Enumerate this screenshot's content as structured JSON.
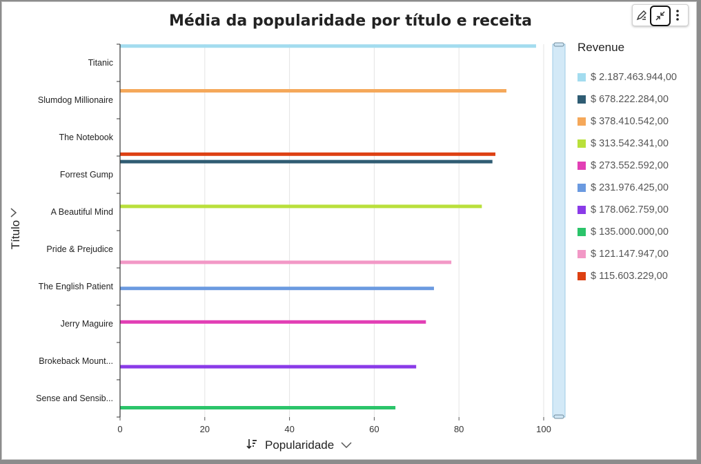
{
  "chart_data": {
    "type": "bar",
    "orientation": "horizontal",
    "title": "Média da popularidade por título e receita",
    "xlabel": "Popularidade",
    "ylabel": "Título",
    "xlim": [
      0,
      100
    ],
    "xticks": [
      0,
      20,
      40,
      60,
      80,
      100
    ],
    "grid": true,
    "legend_title": "Revenue",
    "legend_placement": "right",
    "categories": [
      "Titanic",
      "Slumdog Millionaire",
      "The Notebook",
      "Forrest Gump",
      "A Beautiful Mind",
      "Pride & Prejudice",
      "The English Patient",
      "Jerry Maguire",
      "Brokeback Mount...",
      "Sense and Sensib..."
    ],
    "series": [
      {
        "name": "$ 2.187.463.944,00",
        "color": "#a3dcef",
        "category": "Titanic",
        "value": 98.2
      },
      {
        "name": "$ 678.222.284,00",
        "color": "#2f5c73",
        "category": "Forrest Gump",
        "value": 87.9
      },
      {
        "name": "$ 378.410.542,00",
        "color": "#f5a85a",
        "category": "Slumdog Millionaire",
        "value": 91.2
      },
      {
        "name": "$ 313.542.341,00",
        "color": "#b9e03b",
        "category": "A Beautiful Mind",
        "value": 85.4
      },
      {
        "name": "$ 273.552.592,00",
        "color": "#e23fb5",
        "category": "Jerry Maguire",
        "value": 72.2
      },
      {
        "name": "$ 231.976.425,00",
        "color": "#6b9ae0",
        "category": "The English Patient",
        "value": 74.1
      },
      {
        "name": "$ 178.062.759,00",
        "color": "#8a3be8",
        "category": "Brokeback Mount...",
        "value": 69.9
      },
      {
        "name": "$ 135.000.000,00",
        "color": "#2bc46a",
        "category": "Sense and Sensib...",
        "value": 65.0
      },
      {
        "name": "$ 121.147.947,00",
        "color": "#f298c6",
        "category": "Pride & Prejudice",
        "value": 78.2
      },
      {
        "name": "$ 115.603.229,00",
        "color": "#dd4012",
        "category": "The Notebook",
        "value": 88.6
      }
    ]
  },
  "toolbar": {
    "icons": [
      "visual-edit-icon",
      "collapse-icon",
      "more-options-icon"
    ]
  }
}
